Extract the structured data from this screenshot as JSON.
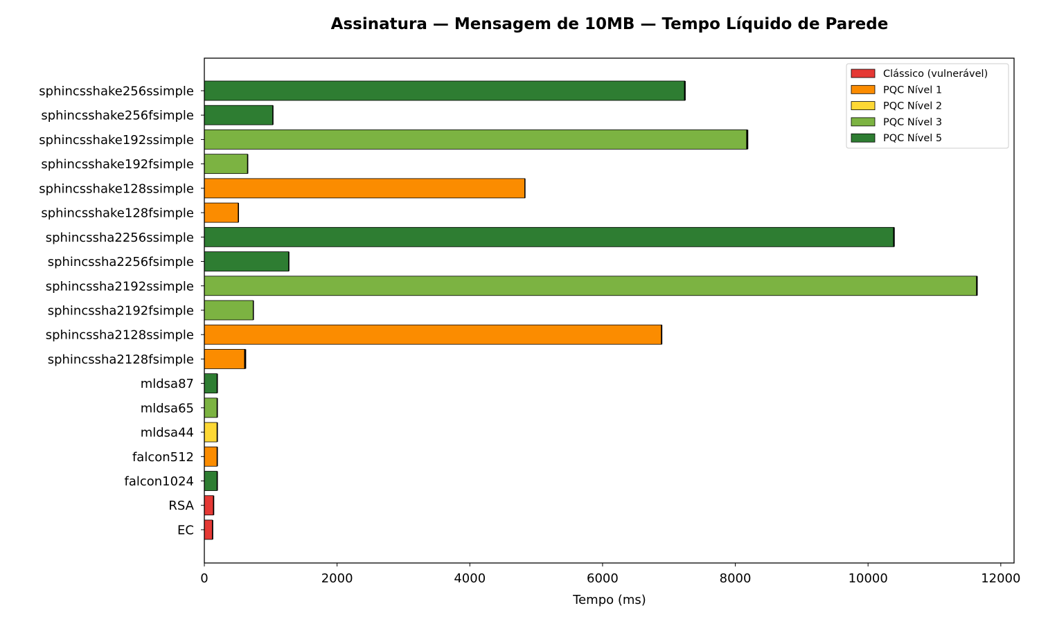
{
  "chart_data": {
    "type": "bar",
    "orientation": "horizontal",
    "title": "Assinatura — Mensagem de 10MB — Tempo Líquido de Parede",
    "xlabel": "Tempo (ms)",
    "ylabel": "",
    "xlim": [
      0,
      12200
    ],
    "xticks": [
      0,
      2000,
      4000,
      6000,
      8000,
      10000,
      12000
    ],
    "xtick_labels": [
      "0",
      "2000",
      "4000",
      "6000",
      "8000",
      "10000",
      "12000"
    ],
    "grid": false,
    "legend_position": "top-right",
    "legend": [
      {
        "key": "classic",
        "label": "Clássico (vulnerável)",
        "color": "#e53935"
      },
      {
        "key": "l1",
        "label": "PQC Nível 1",
        "color": "#fb8c00"
      },
      {
        "key": "l2",
        "label": "PQC Nível 2",
        "color": "#fdd835"
      },
      {
        "key": "l3",
        "label": "PQC Nível 3",
        "color": "#7cb342"
      },
      {
        "key": "l5",
        "label": "PQC Nível 5",
        "color": "#2e7d32"
      }
    ],
    "bars": [
      {
        "label": "sphincsshake256ssimple",
        "value": 7240,
        "error": 12,
        "group": "l5"
      },
      {
        "label": "sphincsshake256fsimple",
        "value": 1030,
        "error": 5,
        "group": "l5"
      },
      {
        "label": "sphincsshake192ssimple",
        "value": 8180,
        "error": 15,
        "group": "l3"
      },
      {
        "label": "sphincsshake192fsimple",
        "value": 650,
        "error": 5,
        "group": "l3"
      },
      {
        "label": "sphincsshake128ssimple",
        "value": 4830,
        "error": 8,
        "group": "l1"
      },
      {
        "label": "sphincsshake128fsimple",
        "value": 510,
        "error": 5,
        "group": "l1"
      },
      {
        "label": "sphincssha2256ssimple",
        "value": 10390,
        "error": 12,
        "group": "l5"
      },
      {
        "label": "sphincssha2256fsimple",
        "value": 1270,
        "error": 5,
        "group": "l5"
      },
      {
        "label": "sphincssha2192ssimple",
        "value": 11640,
        "error": 12,
        "group": "l3"
      },
      {
        "label": "sphincssha2192fsimple",
        "value": 735,
        "error": 5,
        "group": "l3"
      },
      {
        "label": "sphincssha2128ssimple",
        "value": 6890,
        "error": 10,
        "group": "l1"
      },
      {
        "label": "sphincssha2128fsimple",
        "value": 615,
        "error": 15,
        "group": "l1"
      },
      {
        "label": "mldsa87",
        "value": 190,
        "error": 3,
        "group": "l5"
      },
      {
        "label": "mldsa65",
        "value": 190,
        "error": 3,
        "group": "l3"
      },
      {
        "label": "mldsa44",
        "value": 190,
        "error": 3,
        "group": "l2"
      },
      {
        "label": "falcon512",
        "value": 190,
        "error": 3,
        "group": "l1"
      },
      {
        "label": "falcon1024",
        "value": 190,
        "error": 3,
        "group": "l5"
      },
      {
        "label": "RSA",
        "value": 135,
        "error": 3,
        "group": "classic"
      },
      {
        "label": "EC",
        "value": 120,
        "error": 3,
        "group": "classic"
      }
    ]
  }
}
